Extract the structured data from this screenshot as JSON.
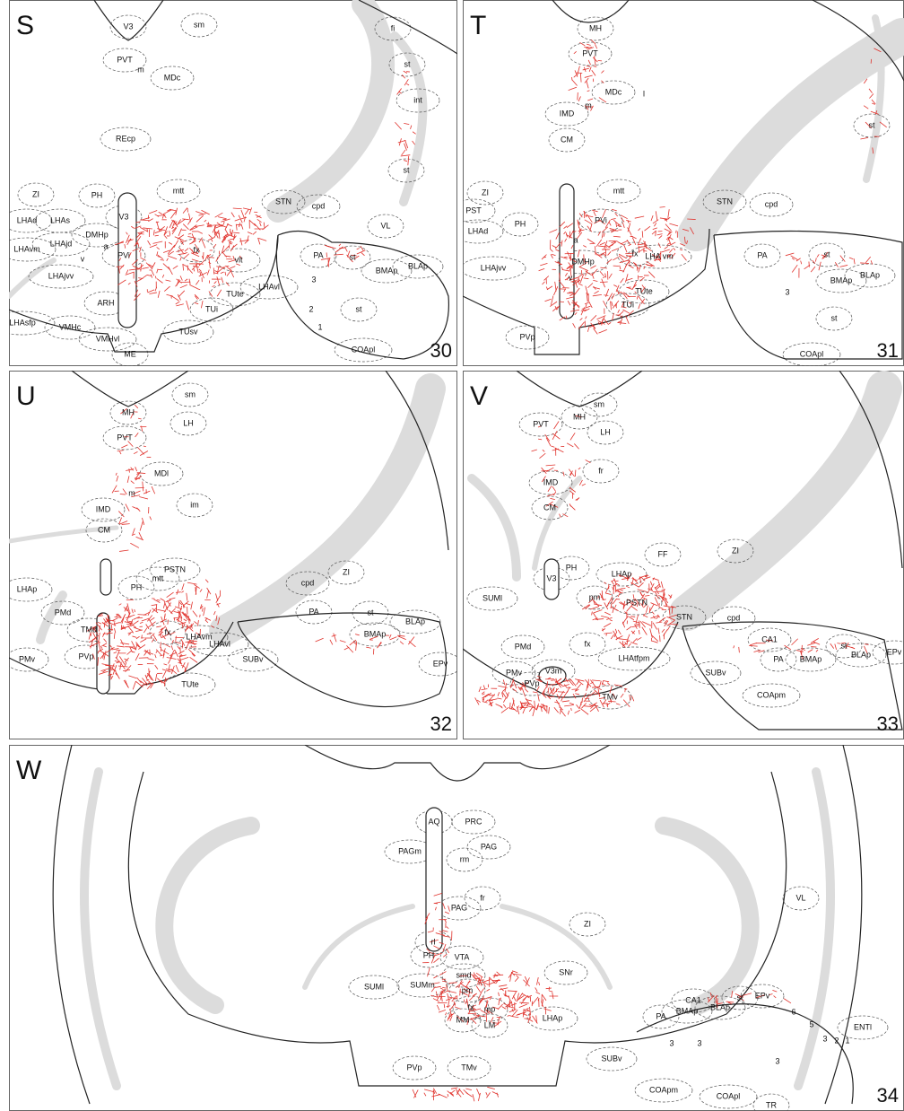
{
  "panels": [
    {
      "letter": "S",
      "number": "30",
      "labels": [
        "V3",
        "sm",
        "PVT",
        "m",
        "MDc",
        "fi",
        "st",
        "int",
        "REcp",
        "st",
        "ZI",
        "PH",
        "mtt",
        "STN",
        "cpd",
        "LHAd",
        "LHAs",
        "LHAjd",
        "DMHp",
        "a",
        "V3",
        "PVi",
        "fx",
        "vlt",
        "VL",
        "LHAvm",
        "v",
        "LHAjvv",
        "PA",
        "st",
        "BMAp",
        "BLAp",
        "3",
        "ARH",
        "TUsv",
        "TUi",
        "TUte",
        "LHAvl",
        "2",
        "st",
        "1",
        "LHAsfp",
        "VMHc",
        "VMHvl",
        "ME",
        "COApl"
      ]
    },
    {
      "letter": "T",
      "number": "31",
      "labels": [
        "MH",
        "PVT",
        "MDc",
        "l",
        "IMD",
        "m",
        "CM",
        "st",
        "mtt",
        "ZI",
        "PST",
        "PH",
        "PVi",
        "STN",
        "cpd",
        "LHAd",
        "LHA vm",
        "fx",
        "a",
        "DMHp",
        "LHAjvv",
        "v",
        "PA",
        "st",
        "BLAp",
        "BMAp",
        "3",
        "st",
        "TUi",
        "TUte",
        "PVp",
        "COApl"
      ]
    },
    {
      "letter": "U",
      "number": "32",
      "labels": [
        "sm",
        "MH",
        "LH",
        "PVT",
        "MDl",
        "m",
        "im",
        "IMD",
        "CM",
        "ZI",
        "PSTN",
        "mtt",
        "PH",
        "cpd",
        "LHAp",
        "PMd",
        "TMd",
        "fx",
        "LHAvm",
        "LHAvl",
        "PMv",
        "PVp",
        "TUte",
        "SUBv",
        "PA",
        "st",
        "BLAp",
        "BMAp",
        "EPv"
      ]
    },
    {
      "letter": "V",
      "number": "33",
      "labels": [
        "MH",
        "sm",
        "PVT",
        "LH",
        "fr",
        "IMD",
        "CM",
        "FF",
        "ZI",
        "PH",
        "LHAp",
        "V3",
        "SUMl",
        "pm",
        "PSTN",
        "STN",
        "cpd",
        "PMd",
        "fx",
        "CA1",
        "LHAtfpm",
        "PA",
        "BMAp",
        "st",
        "BLAp",
        "EPv",
        "PMv",
        "PVp",
        "V3m",
        "TMv",
        "SUBv",
        "COApm"
      ]
    },
    {
      "letter": "W",
      "number": "34",
      "labels": [
        "AQ",
        "PRC",
        "PAGm",
        "rm",
        "PAG",
        "PAG",
        "fr",
        "rl",
        "ZI",
        "VL",
        "PH",
        "VTA",
        "SNr",
        "smd",
        "SUMl",
        "SUMm",
        "pm",
        "CA1",
        "MM",
        "fx",
        "mp",
        "LM",
        "LHAp",
        "6",
        "5",
        "EPv",
        "st",
        "BLAp",
        "BMAp",
        "PA",
        "3",
        "2",
        "1",
        "3",
        "3",
        "3",
        "ENTl",
        "SUBv",
        "PVp",
        "TMv",
        "COApm",
        "COApl",
        "TR"
      ]
    }
  ]
}
